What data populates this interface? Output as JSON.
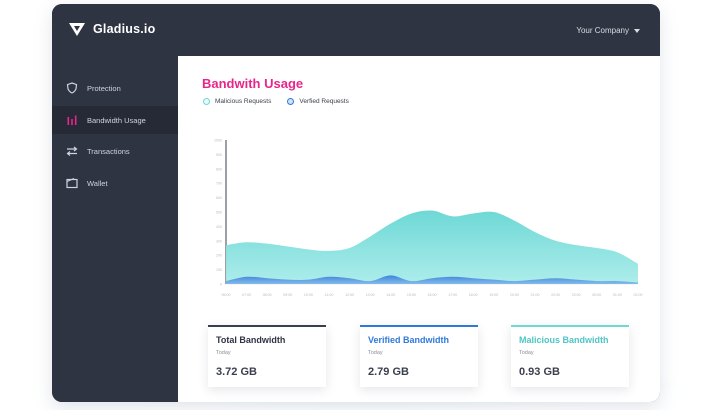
{
  "app": {
    "brand": "Gladius.io",
    "company": "Your Company"
  },
  "sidebar": {
    "items": [
      {
        "label": "Protection",
        "icon": "shield-icon",
        "active": false
      },
      {
        "label": "Bandwidth Usage",
        "icon": "bar-chart-icon",
        "active": true
      },
      {
        "label": "Transactions",
        "icon": "transfer-arrows-icon",
        "active": false
      },
      {
        "label": "Wallet",
        "icon": "wallet-icon",
        "active": false
      }
    ]
  },
  "main": {
    "title": "Bandwith Usage",
    "legend": [
      {
        "label": "Malicious Requests",
        "color": "#6fd8d6"
      },
      {
        "label": "Verfied Requests",
        "color": "#2f7ad8"
      }
    ]
  },
  "chart_data": {
    "type": "area",
    "x": [
      "06:00",
      "07:00",
      "08:00",
      "09:00",
      "10:00",
      "11:00",
      "12:00",
      "13:00",
      "14:00",
      "15:00",
      "16:00",
      "17:00",
      "18:00",
      "19:00",
      "20:00",
      "21:00",
      "22:00",
      "23:00",
      "00:00",
      "01:00",
      "02:00"
    ],
    "yticks": [
      0,
      100,
      200,
      300,
      400,
      500,
      600,
      700,
      800,
      900,
      1000
    ],
    "ylim": [
      0,
      1000
    ],
    "series": [
      {
        "name": "Malicious Requests",
        "color": "#6fd8d6",
        "values": [
          270,
          290,
          280,
          260,
          240,
          230,
          250,
          330,
          420,
          490,
          510,
          470,
          490,
          500,
          440,
          360,
          300,
          270,
          250,
          220,
          140
        ]
      },
      {
        "name": "Verfied Requests",
        "color": "#2f7ad8",
        "values": [
          20,
          50,
          40,
          30,
          30,
          50,
          40,
          20,
          60,
          20,
          40,
          50,
          40,
          30,
          20,
          30,
          40,
          30,
          20,
          20,
          10
        ]
      }
    ]
  },
  "cards": [
    {
      "title": "Total Bandwidth",
      "sub": "Today",
      "value": "3.72 GB",
      "accent": "#3a3f4d",
      "title_color": "#2f3443"
    },
    {
      "title": "Verified Bandwidth",
      "sub": "Today",
      "value": "2.79 GB",
      "accent": "#2f7ad8",
      "title_color": "#2f7ad8"
    },
    {
      "title": "Malicious Bandwidth",
      "sub": "Today",
      "value": "0.93 GB",
      "accent": "#6fd8d6",
      "title_color": "#4fc6c4"
    }
  ]
}
